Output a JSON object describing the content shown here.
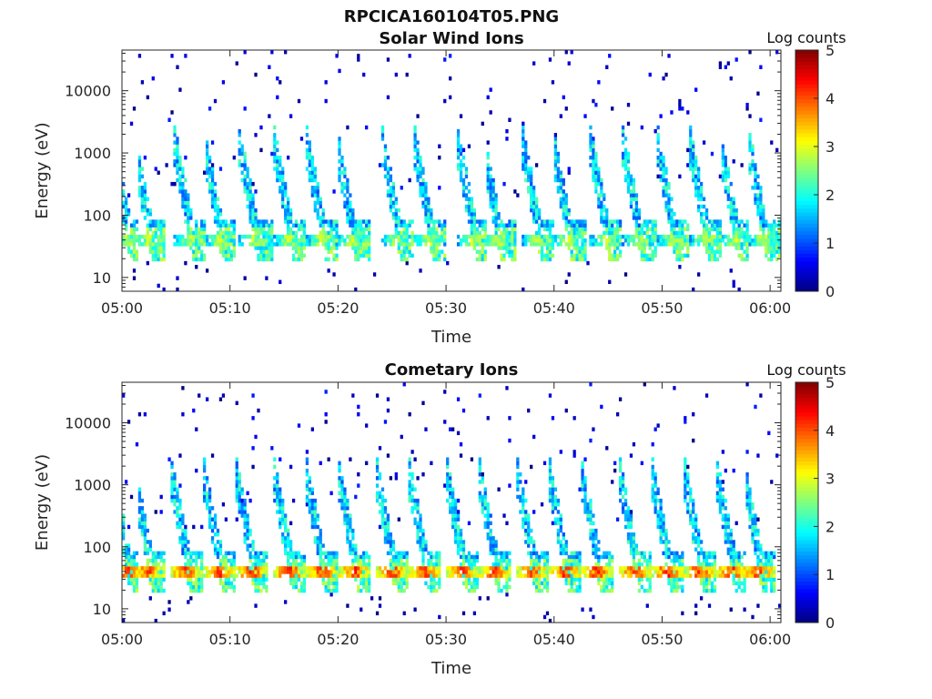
{
  "figure": {
    "title": "RPCICA160104T05.PNG"
  },
  "colors": {
    "background": "#ffffff",
    "axis": "#262626",
    "colormap": "jet"
  },
  "chart_data": [
    {
      "type": "heatmap",
      "title": "Solar Wind Ions",
      "xlabel": "Time",
      "ylabel": "Energy (eV)",
      "x_tick_labels": [
        "05:00",
        "05:10",
        "05:20",
        "05:30",
        "05:40",
        "05:50",
        "06:00"
      ],
      "x_ticks_min": [
        0,
        10,
        20,
        30,
        40,
        50,
        60
      ],
      "xlim_min": [
        0,
        61
      ],
      "y_scale": "log",
      "y_tick_labels": [
        "10",
        "100",
        "1000",
        "10000"
      ],
      "y_ticks": [
        10,
        100,
        1000,
        10000
      ],
      "ylim": [
        6,
        45000
      ],
      "colorbar": {
        "label": "Log counts",
        "range": [
          0,
          5
        ],
        "tick_labels": [
          "0",
          "1",
          "2",
          "3",
          "4",
          "5"
        ]
      },
      "bursts_min": [
        0.5,
        2.5,
        6.3,
        9.0,
        12.3,
        15.5,
        18.5,
        21.3,
        25.5,
        28.5,
        32.5,
        34.8,
        38.5,
        41.3,
        44.8,
        47.8,
        51.0,
        54.0,
        56.8,
        59.4
      ],
      "peak_energy_eV": 40,
      "peak_log_counts": 3.2
    },
    {
      "type": "heatmap",
      "title": "Cometary Ions",
      "xlabel": "Time",
      "ylabel": "Energy (eV)",
      "x_tick_labels": [
        "05:00",
        "05:10",
        "05:20",
        "05:30",
        "05:40",
        "05:50",
        "06:00"
      ],
      "x_ticks_min": [
        0,
        10,
        20,
        30,
        40,
        50,
        60
      ],
      "xlim_min": [
        0,
        61
      ],
      "y_scale": "log",
      "y_tick_labels": [
        "10",
        "100",
        "1000",
        "10000"
      ],
      "y_ticks": [
        10,
        100,
        1000,
        10000
      ],
      "ylim": [
        6,
        45000
      ],
      "colorbar": {
        "label": "Log counts",
        "range": [
          0,
          5
        ],
        "tick_labels": [
          "0",
          "1",
          "2",
          "3",
          "4",
          "5"
        ]
      },
      "bursts_min": [
        0.5,
        2.5,
        6.0,
        9.0,
        12.0,
        15.5,
        18.5,
        21.5,
        25.0,
        28.0,
        31.5,
        34.5,
        38.0,
        41.0,
        44.0,
        47.5,
        50.5,
        53.5,
        56.5,
        59.0
      ],
      "peak_energy_eV": 40,
      "peak_log_counts": 4.5
    }
  ]
}
